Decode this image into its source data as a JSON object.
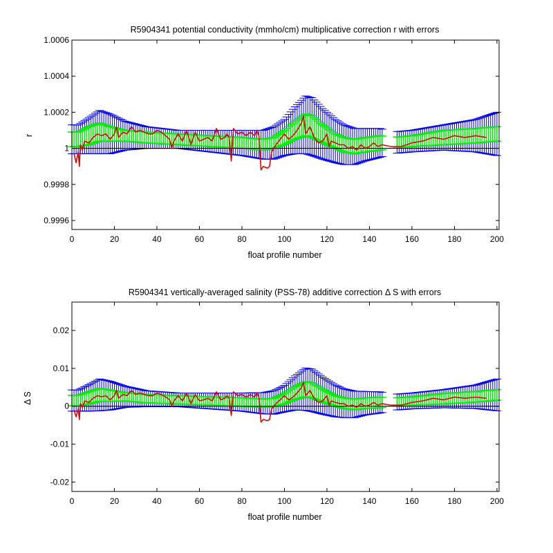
{
  "colors": {
    "fit": "#dd0000",
    "inner_error": "#00ee00",
    "outer_error": "#0000ee",
    "zero_line": "#000000",
    "background": "#ffffff"
  },
  "chart_data": [
    {
      "type": "line",
      "title": "R5904341 potential conductivity (mmho/cm) multiplicative correction r with errors",
      "xlabel": "float profile number",
      "ylabel": "r",
      "xlim": [
        0,
        201
      ],
      "ylim": [
        0.99955,
        1.0006
      ],
      "xticks": [
        0,
        20,
        40,
        60,
        80,
        100,
        120,
        140,
        160,
        180,
        200
      ],
      "yticks": [
        0.9996,
        0.9998,
        1,
        1.0002,
        1.0004,
        1.0006
      ],
      "ytick_labels": [
        "0.9996",
        "0.9998",
        "1",
        "1.0002",
        "1.0004",
        "1.0006"
      ],
      "reference_line": 1,
      "grid": false,
      "envelope": {
        "x": [
          0,
          3,
          8,
          13,
          18,
          25,
          35,
          50,
          65,
          80,
          90,
          95,
          100,
          105,
          110,
          113,
          118,
          124,
          128,
          133,
          138,
          145,
          150,
          160,
          175,
          190,
          200
        ],
        "center": [
          1.00005,
          1.00005,
          1.00007,
          1.00009,
          1.00008,
          1.00007,
          1.00006,
          1.00005,
          1.00004,
          1.00003,
          1.00002,
          1.00003,
          1.00006,
          1.0001,
          1.00013,
          1.00012,
          1.00008,
          1.00004,
          1.00002,
          1.00001,
          1.00002,
          1.00003,
          1.00003,
          1.00004,
          1.00006,
          1.00007,
          1.00008
        ],
        "inner_half": [
          4e-05,
          4e-05,
          5e-05,
          5e-05,
          4e-05,
          3e-05,
          3e-05,
          3e-05,
          3e-05,
          3e-05,
          3e-05,
          3e-05,
          4e-05,
          5e-05,
          6e-05,
          6e-05,
          5e-05,
          4e-05,
          4e-05,
          4e-05,
          4e-05,
          4e-05,
          3e-05,
          3e-05,
          4e-05,
          4e-05,
          4e-05
        ],
        "outer_half": [
          8e-05,
          8e-05,
          0.0001,
          0.00012,
          0.00011,
          8e-05,
          6e-05,
          5e-05,
          6e-05,
          7e-05,
          8e-05,
          9e-05,
          0.0001,
          0.00013,
          0.00016,
          0.00016,
          0.00014,
          0.00012,
          0.00011,
          0.0001,
          9e-05,
          8e-05,
          6e-05,
          6e-05,
          7e-05,
          9e-05,
          0.00012
        ],
        "gaps": [
          [
            146.5,
            152.5
          ]
        ]
      },
      "series": [
        {
          "x": [
            1,
            2,
            3,
            3.5,
            4,
            5,
            6,
            8,
            10,
            12,
            14,
            16,
            18,
            20,
            21,
            22,
            24,
            26,
            28,
            30,
            32,
            34,
            36,
            38,
            40,
            42,
            44,
            46,
            47,
            48,
            50,
            52,
            54,
            55,
            56,
            58,
            60,
            62,
            64,
            66,
            68,
            70,
            72,
            73,
            74,
            75,
            76,
            78,
            80,
            82,
            84,
            86,
            87,
            88,
            89,
            90,
            92,
            93,
            94,
            96,
            98,
            100,
            102,
            104,
            106,
            108,
            109,
            110,
            112,
            114,
            116,
            118,
            120,
            121,
            122,
            124,
            126,
            128,
            130,
            132,
            134,
            136,
            138,
            140,
            142,
            144,
            146,
            150,
            155,
            160,
            165,
            170,
            175,
            180,
            185,
            190,
            195
          ],
          "y": [
            0.99997,
            0.99992,
            0.99998,
            0.9999,
            1.00002,
            0.99999,
            1.00004,
            1.00003,
            1.00006,
            1.00008,
            1.00007,
            1.00008,
            1.00005,
            1.00008,
            1.00012,
            1.00006,
            1.00009,
            1.00008,
            1.00012,
            1.00009,
            1.0001,
            1.00009,
            1.00008,
            1.00008,
            1.0001,
            1.00009,
            1.00007,
            1.00005,
            1.0,
            1.00004,
            1.00008,
            1.00004,
            1.0001,
            1.00006,
            1.00002,
            1.00009,
            1.00004,
            1.00005,
            1.00006,
            1.00004,
            1.00011,
            1.00005,
            1.00006,
            1.00008,
            1.00006,
            0.99993,
            1.00011,
            1.00008,
            1.00009,
            1.00007,
            1.00009,
            1.00007,
            1.0001,
            1.00007,
            0.99988,
            0.9999,
            0.99989,
            0.9999,
            0.99998,
            1.00002,
            1.00005,
            1.00008,
            1.00005,
            1.00007,
            1.0001,
            1.00014,
            1.00018,
            1.00008,
            1.00012,
            1.00006,
            1.00003,
            1.00004,
            1.00008,
            1.00001,
            1.00004,
            1.00003,
            1.00002,
            1.00002,
            1.0,
            1.00001,
            0.99999,
            1.00002,
            1.0,
            1.00001,
            1.00003,
            1.00001,
            1.00002,
            1.00001,
            1.00001,
            1.00003,
            1.00004,
            1.00006,
            1.00005,
            1.00007,
            1.00006,
            1.00007,
            1.00006
          ]
        }
      ]
    },
    {
      "type": "line",
      "title": "R5904341 vertically-averaged salinity (PSS-78) additive correction Δ S with errors",
      "xlabel": "float profile number",
      "ylabel": "Δ S",
      "xlim": [
        0,
        201
      ],
      "ylim": [
        -0.0225,
        0.0275
      ],
      "xticks": [
        0,
        20,
        40,
        60,
        80,
        100,
        120,
        140,
        160,
        180,
        200
      ],
      "yticks": [
        -0.02,
        -0.01,
        0,
        0.01,
        0.02
      ],
      "ytick_labels": [
        "-0.02",
        "-0.01",
        "0",
        "0.01",
        "0.02"
      ],
      "reference_line": 0,
      "grid": false,
      "envelope": {
        "x": [
          0,
          3,
          8,
          13,
          18,
          25,
          35,
          50,
          65,
          80,
          90,
          95,
          100,
          105,
          110,
          113,
          118,
          124,
          128,
          133,
          138,
          145,
          150,
          160,
          175,
          190,
          200
        ],
        "center": [
          0.0015,
          0.0015,
          0.0022,
          0.003,
          0.0028,
          0.0025,
          0.002,
          0.0017,
          0.0014,
          0.0011,
          0.0008,
          0.001,
          0.002,
          0.0035,
          0.0045,
          0.0042,
          0.0028,
          0.0014,
          0.0008,
          0.0005,
          0.0008,
          0.001,
          0.001,
          0.0014,
          0.002,
          0.0025,
          0.003
        ],
        "inner_half": [
          0.0014,
          0.0014,
          0.0016,
          0.0017,
          0.0015,
          0.0011,
          0.0011,
          0.0011,
          0.0011,
          0.0011,
          0.0011,
          0.0011,
          0.0014,
          0.0017,
          0.002,
          0.002,
          0.0017,
          0.0014,
          0.0014,
          0.0014,
          0.0014,
          0.0014,
          0.0011,
          0.0011,
          0.0014,
          0.0014,
          0.0014
        ],
        "outer_half": [
          0.0028,
          0.0028,
          0.0035,
          0.0042,
          0.0038,
          0.0028,
          0.0021,
          0.0018,
          0.0021,
          0.0024,
          0.0028,
          0.0031,
          0.0035,
          0.0045,
          0.0056,
          0.0056,
          0.0049,
          0.0042,
          0.0038,
          0.0035,
          0.0031,
          0.0028,
          0.0021,
          0.0021,
          0.0024,
          0.0031,
          0.0042
        ],
        "gaps": [
          [
            146.5,
            152.5
          ]
        ]
      },
      "series": [
        {
          "x": [
            1,
            2,
            3,
            3.5,
            4,
            5,
            6,
            8,
            10,
            12,
            14,
            16,
            18,
            20,
            21,
            22,
            24,
            26,
            28,
            30,
            32,
            34,
            36,
            38,
            40,
            42,
            44,
            46,
            47,
            48,
            50,
            52,
            54,
            55,
            56,
            58,
            60,
            62,
            64,
            66,
            68,
            70,
            72,
            73,
            74,
            75,
            76,
            78,
            80,
            82,
            84,
            86,
            87,
            88,
            89,
            90,
            92,
            93,
            94,
            96,
            98,
            100,
            102,
            104,
            106,
            108,
            109,
            110,
            112,
            114,
            116,
            118,
            120,
            121,
            122,
            124,
            126,
            128,
            130,
            132,
            134,
            136,
            138,
            140,
            142,
            144,
            146,
            150,
            155,
            160,
            165,
            170,
            175,
            180,
            185,
            190,
            195
          ],
          "y": [
            -0.001,
            -0.0028,
            -0.0007,
            -0.0035,
            0.0007,
            -0.0003,
            0.0014,
            0.001,
            0.0021,
            0.0028,
            0.0025,
            0.0028,
            0.0017,
            0.0028,
            0.0042,
            0.0021,
            0.0031,
            0.0028,
            0.0042,
            0.0031,
            0.0035,
            0.0031,
            0.0028,
            0.0028,
            0.0035,
            0.0031,
            0.0025,
            0.0017,
            0.0,
            0.0014,
            0.0028,
            0.0014,
            0.0035,
            0.0021,
            0.0007,
            0.0031,
            0.0014,
            0.0017,
            0.0021,
            0.0014,
            0.0038,
            0.0017,
            0.0021,
            0.0028,
            0.0021,
            -0.0024,
            0.0038,
            0.0028,
            0.0031,
            0.0024,
            0.0031,
            0.0024,
            0.0035,
            0.0024,
            -0.0042,
            -0.0035,
            -0.0038,
            -0.0035,
            -0.0007,
            0.0007,
            0.0017,
            0.0028,
            0.0017,
            0.0024,
            0.0035,
            0.0049,
            0.0063,
            0.0028,
            0.0042,
            0.0021,
            0.001,
            0.0014,
            0.0028,
            0.0003,
            0.0014,
            0.001,
            0.0007,
            0.0007,
            0.0,
            0.0003,
            -0.0003,
            0.0007,
            0.0,
            0.0003,
            0.001,
            0.0003,
            0.0007,
            0.0003,
            0.0003,
            0.001,
            0.0014,
            0.0021,
            0.0017,
            0.0024,
            0.0021,
            0.0024,
            0.0021
          ]
        }
      ]
    }
  ]
}
